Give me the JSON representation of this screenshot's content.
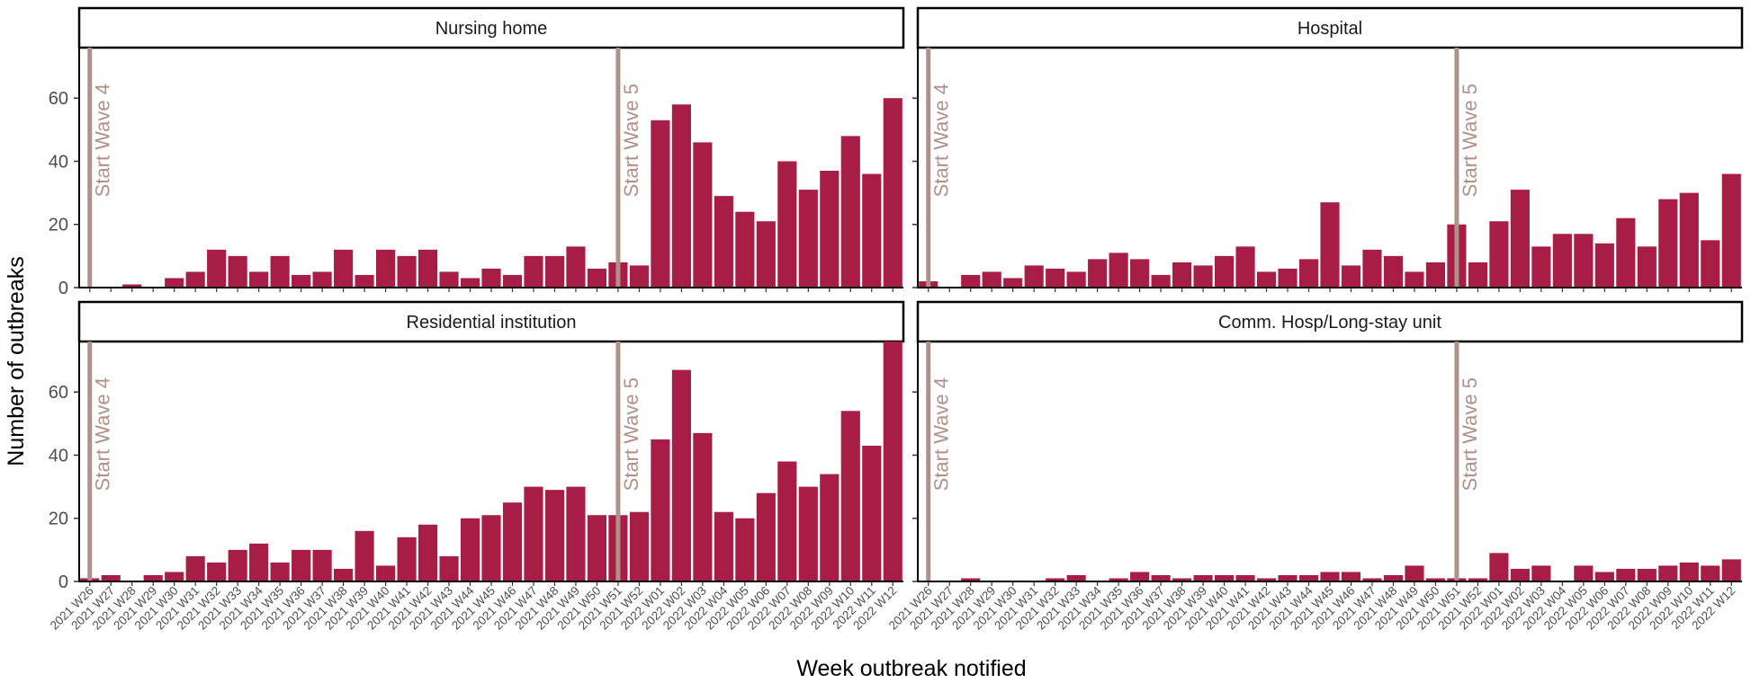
{
  "chart_data": {
    "type": "bar",
    "ylabel": "Number of outbreaks",
    "xlabel": "Week outbreak notified",
    "ylim": [
      0,
      76
    ],
    "yticks": [
      0,
      20,
      40,
      60
    ],
    "bar_color": "#A71D45",
    "wave_line_color": "#B09189",
    "categories": [
      "2021 W26",
      "2021 W27",
      "2021 W28",
      "2021 W29",
      "2021 W30",
      "2021 W31",
      "2021 W32",
      "2021 W33",
      "2021 W34",
      "2021 W35",
      "2021 W36",
      "2021 W37",
      "2021 W38",
      "2021 W39",
      "2021 W40",
      "2021 W41",
      "2021 W42",
      "2021 W43",
      "2021 W44",
      "2021 W45",
      "2021 W46",
      "2021 W47",
      "2021 W48",
      "2021 W49",
      "2021 W50",
      "2021 W51",
      "2021 W52",
      "2022 W01",
      "2022 W02",
      "2022 W03",
      "2022 W04",
      "2022 W05",
      "2022 W06",
      "2022 W07",
      "2022 W08",
      "2022 W09",
      "2022 W10",
      "2022 W11",
      "2022 W12"
    ],
    "wave_markers": [
      {
        "label": "Start Wave 4",
        "category": "2021 W26"
      },
      {
        "label": "Start Wave 5",
        "category": "2021 W51"
      }
    ],
    "panels": [
      {
        "name": "Nursing home",
        "values": [
          0,
          0,
          1,
          0,
          3,
          5,
          12,
          10,
          5,
          10,
          4,
          5,
          12,
          4,
          12,
          10,
          12,
          5,
          3,
          6,
          4,
          10,
          10,
          13,
          6,
          8,
          7,
          53,
          58,
          46,
          29,
          24,
          21,
          40,
          31,
          37,
          48,
          36,
          60
        ]
      },
      {
        "name": "Hospital",
        "values": [
          2,
          0,
          4,
          5,
          3,
          7,
          6,
          5,
          9,
          11,
          9,
          4,
          8,
          7,
          10,
          13,
          5,
          6,
          9,
          27,
          7,
          12,
          10,
          5,
          8,
          20,
          8,
          21,
          31,
          13,
          17,
          17,
          14,
          22,
          13,
          28,
          30,
          15,
          36
        ]
      },
      {
        "name": "Residential institution",
        "values": [
          1,
          2,
          0,
          2,
          3,
          8,
          6,
          10,
          12,
          6,
          10,
          10,
          4,
          16,
          5,
          14,
          18,
          8,
          20,
          21,
          25,
          30,
          29,
          30,
          21,
          21,
          22,
          45,
          67,
          47,
          22,
          20,
          28,
          38,
          30,
          34,
          54,
          43,
          76
        ]
      },
      {
        "name": "Comm. Hosp/Long-stay unit",
        "values": [
          0,
          0,
          1,
          0,
          0,
          0,
          1,
          2,
          0,
          1,
          3,
          2,
          1,
          2,
          2,
          2,
          1,
          2,
          2,
          3,
          3,
          1,
          2,
          5,
          1,
          1,
          1,
          9,
          4,
          5,
          0,
          5,
          3,
          4,
          4,
          5,
          6,
          5,
          7
        ]
      }
    ]
  }
}
